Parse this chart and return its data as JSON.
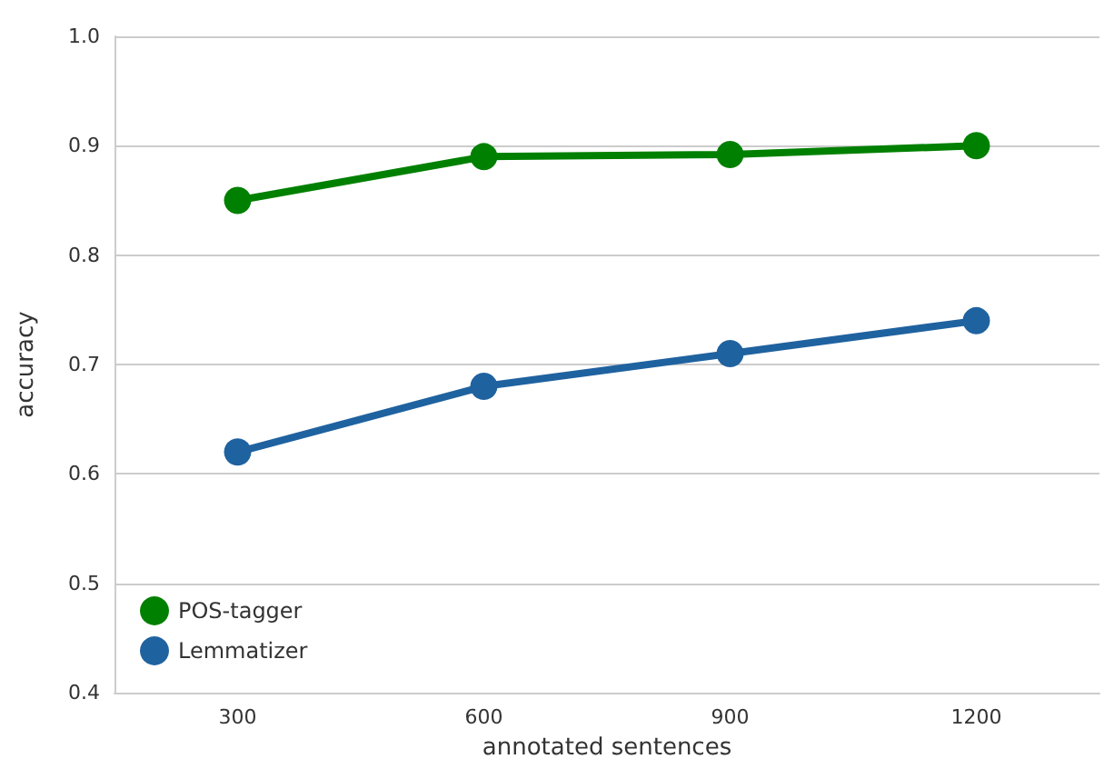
{
  "chart_data": {
    "type": "line",
    "xlabel": "annotated sentences",
    "ylabel": "accuracy",
    "categories": [
      "300",
      "600",
      "900",
      "1200"
    ],
    "series": [
      {
        "name": "POS-tagger",
        "color": "#008000",
        "values": [
          0.85,
          0.89,
          0.892,
          0.9
        ]
      },
      {
        "name": "Lemmatizer",
        "color": "#1f62a0",
        "values": [
          0.62,
          0.68,
          0.71,
          0.74
        ]
      }
    ],
    "ylim": [
      0.4,
      1.0
    ],
    "yticks": [
      0.4,
      0.5,
      0.6,
      0.7,
      0.8,
      0.9,
      {
        "value": 1,
        "label": "1.0"
      }
    ],
    "grid": "y",
    "legend": "bottom left",
    "marker": "circle",
    "line_style": "solid"
  }
}
